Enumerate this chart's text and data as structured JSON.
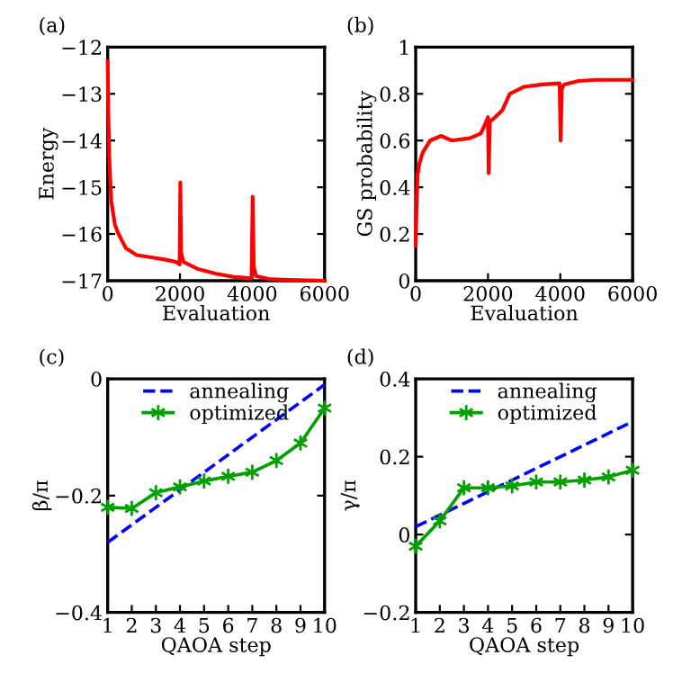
{
  "chart_data": [
    {
      "type": "line",
      "title": "(a)",
      "xlabel": "Evaluation",
      "ylabel": "Energy",
      "xlim": [
        0,
        6000
      ],
      "xticks": [
        0,
        2000,
        4000,
        6000
      ],
      "ylim": [
        -17,
        -12
      ],
      "yticks": [
        {
          "value": -17,
          "label": "−17"
        },
        {
          "value": -16,
          "label": "−16"
        },
        {
          "value": -15,
          "label": "−15"
        },
        {
          "value": -14,
          "label": "−14"
        },
        {
          "value": -13,
          "label": "−13"
        },
        {
          "value": -12,
          "label": "−12"
        }
      ],
      "grid": false,
      "legend": false,
      "series": [
        {
          "color": "#ff0000",
          "x": [
            0,
            20,
            50,
            100,
            200,
            300,
            500,
            800,
            1200,
            1600,
            1900,
            1990,
            2010,
            2030,
            2100,
            2500,
            3000,
            3500,
            3980,
            4010,
            4040,
            4100,
            4500,
            5000,
            6000
          ],
          "values": [
            -12.3,
            -13.5,
            -14.5,
            -15.3,
            -15.8,
            -16.0,
            -16.3,
            -16.45,
            -16.5,
            -16.55,
            -16.6,
            -16.65,
            -14.9,
            -16.4,
            -16.6,
            -16.75,
            -16.85,
            -16.92,
            -16.95,
            -15.2,
            -16.7,
            -16.9,
            -16.97,
            -16.98,
            -17.0
          ]
        }
      ]
    },
    {
      "type": "line",
      "title": "(b)",
      "xlabel": "Evaluation",
      "ylabel": "GS probability",
      "xlim": [
        0,
        6000
      ],
      "xticks": [
        0,
        2000,
        4000,
        6000
      ],
      "ylim": [
        0,
        1
      ],
      "yticks": [
        0,
        0.2,
        0.4,
        0.6,
        0.8,
        1
      ],
      "grid": false,
      "legend": false,
      "series": [
        {
          "color": "#ff0000",
          "x": [
            0,
            20,
            50,
            100,
            200,
            400,
            700,
            1000,
            1500,
            1800,
            1950,
            2000,
            2020,
            2050,
            2200,
            2400,
            2600,
            3000,
            3500,
            3980,
            4010,
            4040,
            4100,
            4500,
            5000,
            6000
          ],
          "values": [
            0.15,
            0.3,
            0.45,
            0.5,
            0.55,
            0.6,
            0.62,
            0.6,
            0.61,
            0.63,
            0.68,
            0.7,
            0.46,
            0.68,
            0.7,
            0.73,
            0.8,
            0.83,
            0.84,
            0.845,
            0.6,
            0.82,
            0.84,
            0.855,
            0.86,
            0.86
          ]
        }
      ]
    },
    {
      "type": "line",
      "title": "(c)",
      "xlabel": "QAOA step",
      "ylabel": "β/π",
      "xlim": [
        1,
        10
      ],
      "xticks": [
        1,
        2,
        3,
        4,
        5,
        6,
        7,
        8,
        9,
        10
      ],
      "ylim": [
        -0.4,
        0
      ],
      "yticks": [
        {
          "value": -0.4,
          "label": "−0.4"
        },
        {
          "value": -0.2,
          "label": "−0.2"
        },
        0
      ],
      "grid": false,
      "legend": "top",
      "x": [
        1,
        2,
        3,
        4,
        5,
        6,
        7,
        8,
        9,
        10
      ],
      "series": [
        {
          "name": "annealing",
          "color": "#0000ff",
          "line_style": "dashed",
          "marker": "none",
          "values": [
            -0.28,
            -0.25,
            -0.22,
            -0.19,
            -0.16,
            -0.13,
            -0.1,
            -0.07,
            -0.04,
            -0.01
          ]
        },
        {
          "name": "optimized",
          "color": "#00a000",
          "line_style": "solid",
          "marker": "cross",
          "values": [
            -0.22,
            -0.222,
            -0.195,
            -0.185,
            -0.175,
            -0.167,
            -0.16,
            -0.14,
            -0.11,
            -0.05
          ]
        }
      ]
    },
    {
      "type": "line",
      "title": "(d)",
      "xlabel": "QAOA step",
      "ylabel": "γ/π",
      "xlim": [
        1,
        10
      ],
      "xticks": [
        1,
        2,
        3,
        4,
        5,
        6,
        7,
        8,
        9,
        10
      ],
      "ylim": [
        -0.2,
        0.4
      ],
      "yticks": [
        {
          "value": -0.2,
          "label": "−0.2"
        },
        0,
        0.2,
        0.4
      ],
      "grid": false,
      "legend": "top",
      "x": [
        1,
        2,
        3,
        4,
        5,
        6,
        7,
        8,
        9,
        10
      ],
      "series": [
        {
          "name": "annealing",
          "color": "#0000ff",
          "line_style": "dashed",
          "marker": "none",
          "values": [
            0.02,
            0.05,
            0.08,
            0.11,
            0.14,
            0.17,
            0.2,
            0.23,
            0.26,
            0.29
          ]
        },
        {
          "name": "optimized",
          "color": "#00a000",
          "line_style": "solid",
          "marker": "cross",
          "values": [
            -0.03,
            0.035,
            0.12,
            0.12,
            0.125,
            0.135,
            0.135,
            0.14,
            0.148,
            0.165
          ]
        }
      ]
    }
  ]
}
